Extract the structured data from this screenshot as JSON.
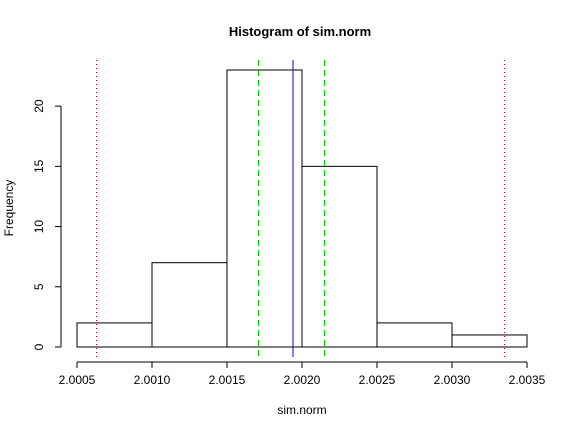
{
  "chart_data": {
    "type": "bar",
    "title": "Histogram of sim.norm",
    "xlabel": "sim.norm",
    "ylabel": "Frequency",
    "bin_edges": [
      2.0005,
      2.001,
      2.0015,
      2.002,
      2.0025,
      2.003,
      2.0035
    ],
    "values": [
      2,
      7,
      23,
      15,
      2,
      1
    ],
    "xlim": [
      2.0005,
      2.0035
    ],
    "ylim": [
      0,
      23
    ],
    "x_ticks": [
      "2.0005",
      "2.0010",
      "2.0015",
      "2.0020",
      "2.0025",
      "2.0030",
      "2.0035"
    ],
    "y_ticks": [
      "0",
      "5",
      "10",
      "15",
      "20"
    ],
    "reference_lines": [
      {
        "x": 2.00063,
        "color": "#cc0000",
        "style": "dotted"
      },
      {
        "x": 2.00171,
        "color": "#00cc00",
        "style": "dashed"
      },
      {
        "x": 2.00194,
        "color": "#0000cc",
        "style": "solid"
      },
      {
        "x": 2.00215,
        "color": "#00cc00",
        "style": "dashed"
      },
      {
        "x": 2.00335,
        "color": "#cc0000",
        "style": "dotted"
      }
    ],
    "grid": false,
    "legend": "none"
  }
}
